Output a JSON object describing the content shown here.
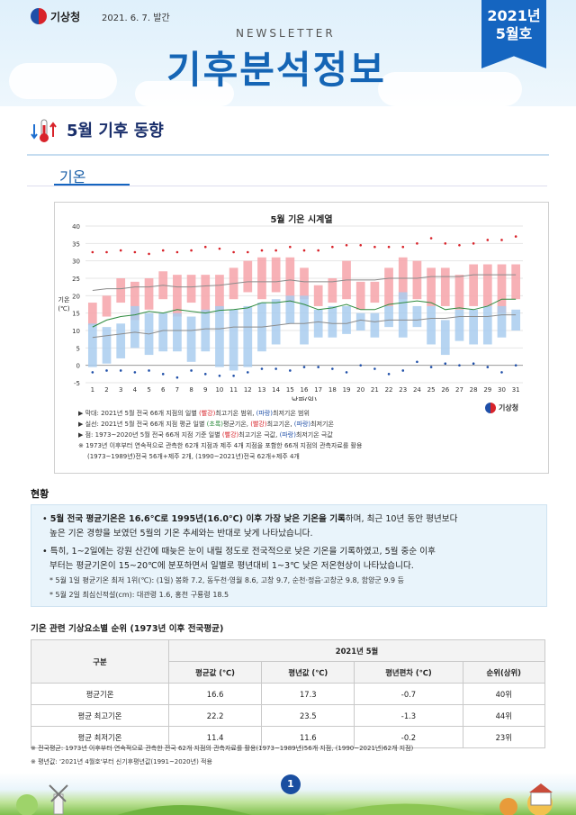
{
  "header": {
    "agency": "기상청",
    "issue_date": "2021. 6. 7. 발간",
    "newsletter": "NEWSLETTER",
    "title": "기후분석정보",
    "badge_year": "2021년",
    "badge_month": "5월호"
  },
  "section": {
    "title": "5월 기후 동향",
    "subtab": "기온"
  },
  "chart_data": {
    "type": "bar",
    "title": "5월 기온 시계열",
    "xlabel": "날짜(일)",
    "ylabel": "기온\n(℃)",
    "ylim": [
      -5,
      40
    ],
    "yticks": [
      -5,
      0,
      5,
      10,
      15,
      20,
      25,
      30,
      35,
      40
    ],
    "x": [
      1,
      2,
      3,
      4,
      5,
      6,
      7,
      8,
      9,
      10,
      11,
      12,
      13,
      14,
      15,
      16,
      17,
      18,
      19,
      20,
      21,
      22,
      23,
      24,
      25,
      26,
      27,
      28,
      29,
      30,
      31
    ],
    "series": [
      {
        "name": "최고기온 범위",
        "kind": "range",
        "low": [
          11.5,
          14,
          18,
          13,
          16,
          19,
          14,
          18,
          15,
          16,
          19,
          21,
          19,
          21,
          18,
          19,
          17,
          18,
          19,
          16,
          18,
          17,
          19,
          19,
          17,
          17,
          16,
          17,
          17,
          15,
          19
        ],
        "high": [
          18,
          20,
          25,
          24,
          25,
          27,
          26,
          26,
          26,
          26,
          28,
          30,
          31,
          31,
          31,
          28,
          23,
          25,
          30,
          24,
          24,
          28,
          31,
          30,
          28,
          28,
          26,
          29,
          29,
          29,
          29
        ]
      },
      {
        "name": "최저기온 범위",
        "kind": "range",
        "low": [
          -0.5,
          0.5,
          2,
          5,
          3,
          4,
          4,
          1,
          4,
          -0.5,
          -1.5,
          -0.5,
          4,
          6,
          12,
          6,
          8,
          8,
          9,
          10,
          8,
          11,
          8,
          11,
          6,
          3,
          7,
          6,
          6,
          8,
          10
        ],
        "high": [
          12,
          11,
          12,
          17,
          15,
          15,
          15,
          14,
          16,
          17,
          16,
          17,
          18,
          19,
          20,
          20,
          16,
          17,
          17,
          15,
          15,
          17,
          21,
          17,
          17,
          13,
          16,
          16,
          17,
          17,
          16
        ]
      },
      {
        "name": "평년 최고기온",
        "kind": "line",
        "values": [
          21.5,
          22,
          22,
          22.5,
          22.5,
          23,
          22.5,
          22.5,
          22.8,
          23,
          23.5,
          24,
          24,
          24,
          24.5,
          24,
          24,
          24,
          24.5,
          24.5,
          24.5,
          25,
          25,
          25,
          25.5,
          25.5,
          25.5,
          26,
          26,
          26,
          26
        ]
      },
      {
        "name": "평균기온",
        "kind": "line",
        "values": [
          11,
          13,
          14,
          14.5,
          15.5,
          15,
          16,
          15.5,
          15,
          15.8,
          16,
          16.5,
          18,
          18,
          18.5,
          17.5,
          16,
          16.5,
          17.5,
          16,
          16,
          17.5,
          18,
          18.5,
          18,
          16,
          16.5,
          16,
          17,
          19,
          19
        ]
      },
      {
        "name": "평년 최저기온",
        "kind": "line",
        "values": [
          8,
          8.5,
          9,
          9.5,
          9,
          10,
          10,
          10,
          10.5,
          10.5,
          11,
          11,
          11,
          11.5,
          12,
          12,
          12.5,
          12,
          12,
          13,
          12.5,
          13,
          13,
          13,
          13.5,
          13.5,
          14,
          14,
          14,
          14.5,
          14.5
        ]
      },
      {
        "name": "극값 최고기온",
        "kind": "points",
        "values": [
          32.5,
          32.5,
          33,
          32.5,
          32,
          33,
          32.5,
          33,
          34,
          33.5,
          32.5,
          32.5,
          33,
          33,
          34,
          33,
          33,
          34,
          34.5,
          34.5,
          34,
          34,
          34,
          35,
          36.5,
          35,
          34.5,
          35,
          36,
          36,
          37
        ]
      },
      {
        "name": "극값 최저기온",
        "kind": "points",
        "values": [
          -2,
          -1.5,
          -1.5,
          -2,
          -1.5,
          -2.5,
          -3.5,
          -1.5,
          -2.5,
          -3,
          -3,
          -2,
          -1,
          -1,
          -1.5,
          -0.5,
          -0.5,
          -1,
          -2,
          0,
          -1,
          -2.5,
          -1.5,
          1,
          -0.5,
          0.5,
          0,
          0.5,
          -0.5,
          -2,
          0
        ]
      }
    ]
  },
  "chart_notes": {
    "logo": "기상청",
    "n1_a": "▶ 막대: 2021년 5월 전국 66개 지점의 일별 ",
    "n1_b": "(빨강)",
    "n1_c": "최고기온 범위, ",
    "n1_d": "(파랑)",
    "n1_e": "최저기온 범위",
    "n2_a": "▶ 실선: 2021년 5월 전국 66개 지점 평균 일별 ",
    "n2_b": "(초록)",
    "n2_c": "평균기온, ",
    "n2_d": "(빨강)",
    "n2_e": "최고기온, ",
    "n2_f": "(파랑)",
    "n2_g": "최저기온",
    "n3_a": "▶ 점: 1973~2020년 5월 전국 66개 지점 기준 일별 ",
    "n3_b": "(빨강)",
    "n3_c": "최고기온 극값, ",
    "n3_d": "(파랑)",
    "n3_e": "최저기온 극값",
    "n4": "※ 1973년 이후부터 연속적으로 관측한 62개 지점과 제주 4개 지점을 포함한 66개 지점의 관측자료를 활용",
    "n5": "(1973~1989년)전국 56개+제주 2개, (1990~2021년)전국 62개+제주 4개"
  },
  "status": {
    "title": "현황",
    "p1_bold": "5월 전국 평균기온은 16.6℃로 1995년(16.0℃) 이후 가장 낮은 기온을 기록",
    "p1_rest": "하며, 최근 10년 동안 평년보다",
    "p1_line2": "높은 기온 경향을 보였던 5월의 기온 추세와는 반대로 낮게 나타났습니다.",
    "p2_line1": "특히, 1~2일에는 강원 산간에 때늦은 눈이 내릴 정도로 전국적으로 낮은 기온을 기록하였고, 5월 중순 이후",
    "p2_line2": "부터는 평균기온이 15~20℃에 분포하면서 일별로 평년대비 1~3℃ 낮은 저온현상이 나타났습니다.",
    "note1": "* 5월 1일 평균기온 최저 1위(℃): (1일) 봉화 7.2, 동두천·영월 8.6, 고창 9.7, 순천·정읍·고창군 9.8, 함양군 9.9 등",
    "note2": "* 5월 2일 최심신적설(cm): 대관령 1.6, 홍천 구룡령 18.5"
  },
  "rank_table": {
    "title": "기온 관련 기상요소별 순위 (1973년 이후 전국평균)",
    "h_item": "구분",
    "h_group": "2021년 5월",
    "h_cols": [
      "평균값 (℃)",
      "평년값 (℃)",
      "평년편차 (℃)",
      "순위(상위)"
    ],
    "rows": [
      {
        "name": "평균기온",
        "vals": [
          "16.6",
          "17.3",
          "-0.7",
          "40위"
        ]
      },
      {
        "name": "평균 최고기온",
        "vals": [
          "22.2",
          "23.5",
          "-1.3",
          "44위"
        ]
      },
      {
        "name": "평균 최저기온",
        "vals": [
          "11.4",
          "11.6",
          "-0.2",
          "23위"
        ]
      }
    ]
  },
  "footnotes": {
    "f1": "※ 전국평균: 1973년 이후부터 연속적으로 관측한 전국 62개 지점의 관측자료를 활용(1973~1989년)56개 지점, (1990~2021년)62개 지점)",
    "f2": "※ 평년값: '2021년 4월호'부터 신기후평년값(1991~2020년) 적용"
  },
  "page_number": "1",
  "colors": {
    "brand_blue": "#1565c0",
    "max_bar": "#f6a9ae",
    "min_bar": "#a9cdee",
    "avg_line": "#2e8b3e"
  }
}
